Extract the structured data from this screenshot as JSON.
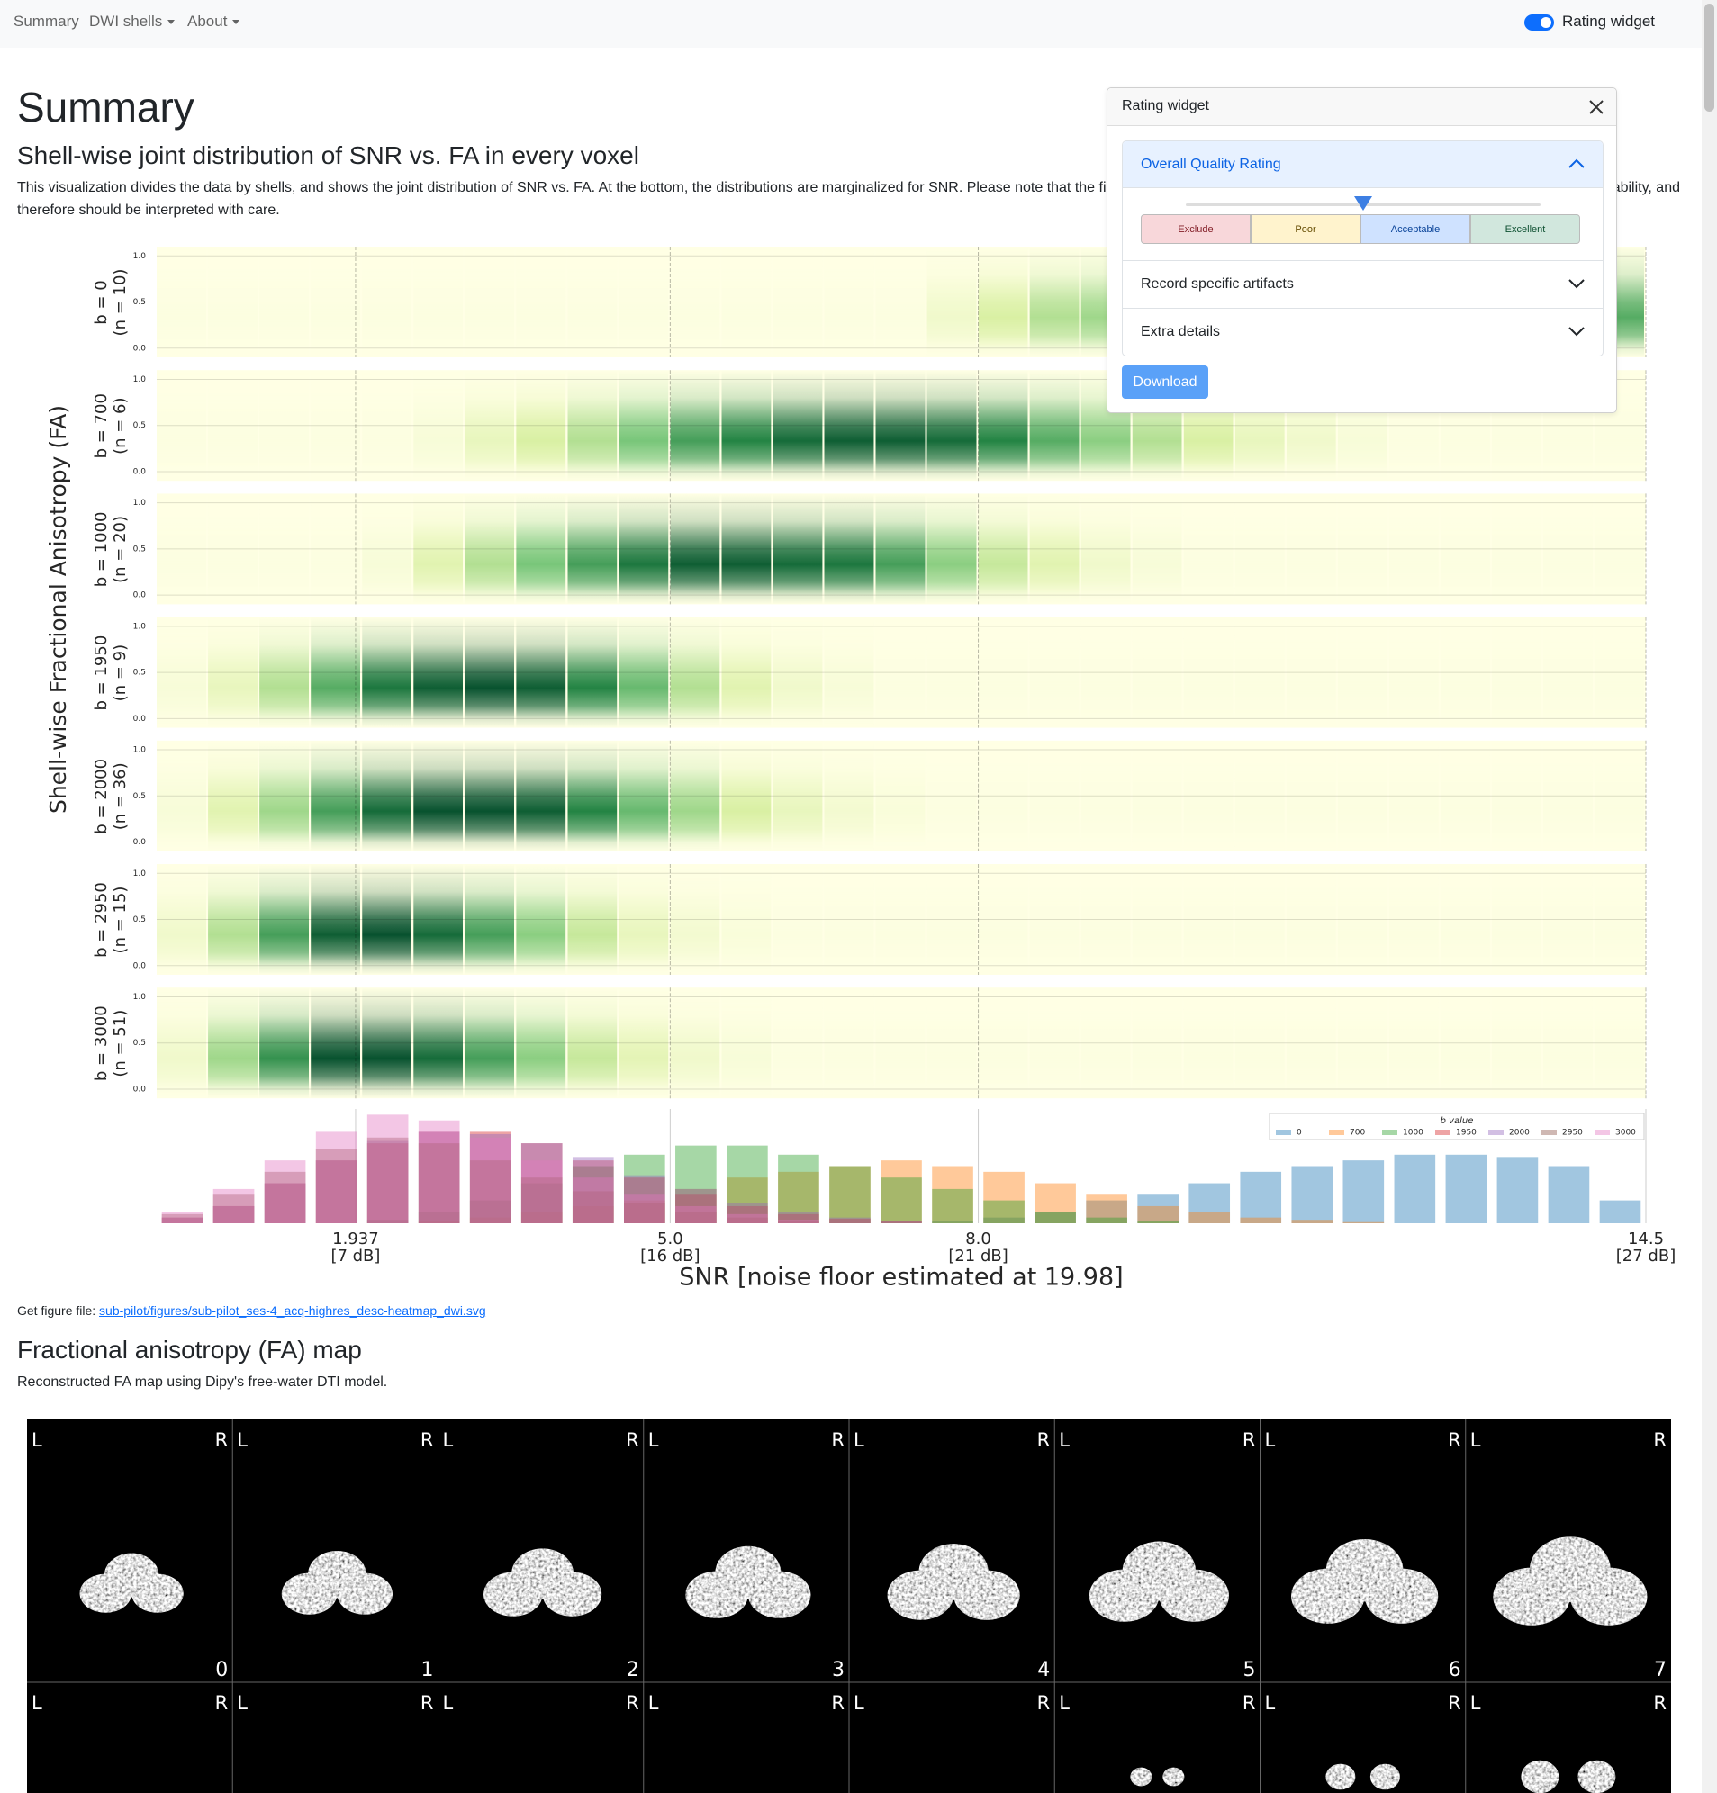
{
  "navbar": {
    "items": [
      "Summary",
      "DWI shells",
      "About"
    ],
    "toggle_label": "Rating widget"
  },
  "page": {
    "title": "Summary",
    "section_title": "Shell-wise joint distribution of SNR vs. FA in every voxel",
    "description": [
      "This visualization divides the data by shells, and shows the joint distribution of SNR vs. FA. At the bottom, the distributions are marginalized for SNR. Please note that the fi",
      "ability, and",
      "therefore should be interpreted with care."
    ],
    "figure_file_prefix": "Get figure file:",
    "figure_file_link": "sub-pilot/figures/sub-pilot_ses-4_acq-highres_desc-heatmap_dwi.svg",
    "fa_title": "Fractional anisotropy (FA) map",
    "fa_description": "Reconstructed FA map using Dipy's free-water DTI model."
  },
  "chart_data": {
    "type": "heatmap",
    "y_label": "Shell-wise Fractional Anisotropy (FA)",
    "x_label": "SNR [noise floor estimated at 19.98]",
    "xlim": [
      0,
      14.5
    ],
    "xticks": [
      1.937,
      {
        "value": 5,
        "label": "5.0"
      },
      {
        "value": 8,
        "label": "8.0"
      },
      14.5
    ],
    "xtick_sublabels": [
      "[7 dB]",
      "[16 dB]",
      "[21 dB]",
      "[27 dB]"
    ],
    "ylim": [
      -0.1,
      1.1
    ],
    "yticks": [
      {
        "value": 0,
        "label": "0.0"
      },
      0.5,
      {
        "value": 1,
        "label": "1.0"
      }
    ],
    "grid": true,
    "snr_bins": [
      0,
      0.5,
      1,
      1.5,
      2,
      2.5,
      3,
      3.5,
      4,
      4.5,
      5,
      5.5,
      6,
      6.5,
      7,
      7.5,
      8,
      8.5,
      9,
      9.5,
      10,
      10.5,
      11,
      11.5,
      12,
      12.5,
      13,
      13.5,
      14,
      14.5
    ],
    "shells": [
      {
        "label": "b = 0",
        "n_label": "(n = 10)",
        "values": [
          0.02,
          0.02,
          0.02,
          0.02,
          0.02,
          0.02,
          0.02,
          0.02,
          0.02,
          0.02,
          0.02,
          0.02,
          0.02,
          0.02,
          0.02,
          0.1,
          0.25,
          0.35,
          0.4,
          0.45,
          0.45,
          0.4,
          0.45,
          0.5,
          0.5,
          0.55,
          0.55,
          0.6,
          0.6
        ]
      },
      {
        "label": "b = 700",
        "n_label": "(n = 6)",
        "values": [
          0.02,
          0.02,
          0.02,
          0.02,
          0.02,
          0.05,
          0.15,
          0.25,
          0.35,
          0.5,
          0.65,
          0.75,
          0.85,
          0.9,
          0.9,
          0.85,
          0.75,
          0.6,
          0.45,
          0.35,
          0.25,
          0.15,
          0.1,
          0.05,
          0.02,
          0.02,
          0.02,
          0.02,
          0.02
        ]
      },
      {
        "label": "b = 1000",
        "n_label": "(n = 20)",
        "values": [
          0.02,
          0.02,
          0.02,
          0.02,
          0.05,
          0.2,
          0.35,
          0.5,
          0.65,
          0.8,
          0.9,
          0.9,
          0.85,
          0.8,
          0.65,
          0.45,
          0.3,
          0.2,
          0.1,
          0.05,
          0.02,
          0.02,
          0.02,
          0.02,
          0.02,
          0.02,
          0.02,
          0.02,
          0.02
        ]
      },
      {
        "label": "b = 1950",
        "n_label": "(n = 9)",
        "values": [
          0.05,
          0.15,
          0.35,
          0.6,
          0.8,
          0.9,
          0.95,
          0.9,
          0.75,
          0.55,
          0.35,
          0.2,
          0.1,
          0.05,
          0.02,
          0.02,
          0.02,
          0.02,
          0.02,
          0.02,
          0.02,
          0.02,
          0.02,
          0.02,
          0.02,
          0.02,
          0.02,
          0.02,
          0.02
        ]
      },
      {
        "label": "b = 2000",
        "n_label": "(n = 36)",
        "values": [
          0.05,
          0.2,
          0.4,
          0.65,
          0.85,
          0.95,
          0.95,
          0.9,
          0.75,
          0.55,
          0.4,
          0.25,
          0.15,
          0.08,
          0.04,
          0.02,
          0.02,
          0.02,
          0.02,
          0.02,
          0.02,
          0.02,
          0.02,
          0.02,
          0.02,
          0.02,
          0.02,
          0.02,
          0.02
        ]
      },
      {
        "label": "b = 2950",
        "n_label": "(n = 15)",
        "values": [
          0.1,
          0.35,
          0.65,
          0.9,
          0.95,
          0.85,
          0.65,
          0.45,
          0.3,
          0.15,
          0.08,
          0.04,
          0.02,
          0.02,
          0.02,
          0.02,
          0.02,
          0.02,
          0.02,
          0.02,
          0.02,
          0.02,
          0.02,
          0.02,
          0.02,
          0.02,
          0.02,
          0.02,
          0.02
        ]
      },
      {
        "label": "b = 3000",
        "n_label": "(n = 51)",
        "values": [
          0.1,
          0.4,
          0.7,
          0.95,
          0.95,
          0.85,
          0.65,
          0.45,
          0.3,
          0.18,
          0.1,
          0.05,
          0.02,
          0.02,
          0.02,
          0.02,
          0.02,
          0.02,
          0.02,
          0.02,
          0.02,
          0.02,
          0.02,
          0.02,
          0.02,
          0.02,
          0.02,
          0.02,
          0.02
        ]
      }
    ],
    "histogram": {
      "type": "bar",
      "legend_title": "b value",
      "ylim": [
        0,
        100
      ],
      "series": [
        {
          "name": "0",
          "color": "#1f77b4",
          "values": [
            0,
            0,
            0,
            0,
            0,
            0,
            0,
            0,
            0,
            0,
            0,
            0,
            0,
            0,
            0,
            2,
            5,
            10,
            20,
            25,
            35,
            45,
            50,
            55,
            60,
            60,
            58,
            50,
            20
          ]
        },
        {
          "name": "700",
          "color": "#ff7f0e",
          "values": [
            0,
            0,
            0,
            0,
            0,
            2,
            5,
            10,
            15,
            20,
            30,
            40,
            45,
            50,
            55,
            50,
            45,
            35,
            25,
            15,
            10,
            5,
            3,
            1,
            0,
            0,
            0,
            0,
            0
          ]
        },
        {
          "name": "1000",
          "color": "#2ca02c",
          "values": [
            0,
            0,
            0,
            0,
            3,
            10,
            20,
            35,
            50,
            60,
            68,
            68,
            60,
            50,
            40,
            30,
            20,
            10,
            5,
            2,
            0,
            0,
            0,
            0,
            0,
            0,
            0,
            0,
            0
          ]
        },
        {
          "name": "1950",
          "color": "#d62728",
          "values": [
            5,
            15,
            35,
            55,
            70,
            80,
            80,
            70,
            55,
            40,
            25,
            15,
            8,
            4,
            2,
            0,
            0,
            0,
            0,
            0,
            0,
            0,
            0,
            0,
            0,
            0,
            0,
            0,
            0
          ]
        },
        {
          "name": "2000",
          "color": "#9467bd",
          "values": [
            5,
            15,
            35,
            55,
            72,
            80,
            78,
            70,
            58,
            42,
            30,
            18,
            10,
            5,
            2,
            0,
            0,
            0,
            0,
            0,
            0,
            0,
            0,
            0,
            0,
            0,
            0,
            0,
            0
          ]
        },
        {
          "name": "2950",
          "color": "#8c564b",
          "values": [
            8,
            25,
            45,
            65,
            75,
            70,
            55,
            40,
            28,
            18,
            10,
            5,
            2,
            0,
            0,
            0,
            0,
            0,
            0,
            0,
            0,
            0,
            0,
            0,
            0,
            0,
            0,
            0,
            0
          ]
        },
        {
          "name": "3000",
          "color": "#e377c2",
          "values": [
            10,
            30,
            55,
            80,
            95,
            90,
            75,
            55,
            40,
            25,
            15,
            8,
            3,
            0,
            0,
            0,
            0,
            0,
            0,
            0,
            0,
            0,
            0,
            0,
            0,
            0,
            0,
            0,
            0
          ]
        }
      ]
    }
  },
  "rating_widget": {
    "title": "Rating widget",
    "sections": [
      "Overall Quality Rating",
      "Record specific artifacts",
      "Extra details"
    ],
    "ratings": [
      "Exclude",
      "Poor",
      "Acceptable",
      "Excellent"
    ],
    "download": "Download"
  },
  "fa_map": {
    "orientation_left": "L",
    "orientation_right": "R",
    "slices": [
      0,
      1,
      2,
      3,
      4,
      5,
      6,
      7
    ]
  }
}
